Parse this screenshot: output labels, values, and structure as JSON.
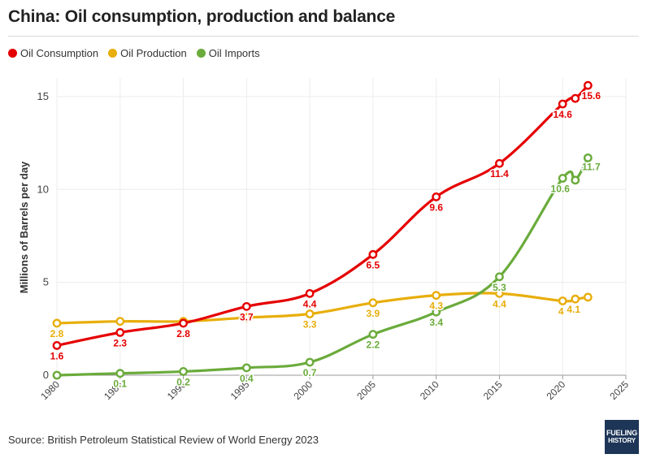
{
  "header": {
    "title": "China: Oil consumption, production and balance"
  },
  "footer": {
    "source": "Source: British Petroleum Statistical Review of World Energy 2023"
  },
  "logo": {
    "line1": "FUELING",
    "line2": "HISTORY"
  },
  "colors": {
    "consumption": "#e50000",
    "production": "#e8ae0c",
    "imports": "#6aab3b",
    "grid": "#ececec",
    "axis": "#999999"
  },
  "chart_data": {
    "type": "line",
    "ylabel": "Millions of Barrels per day",
    "xlabel": "",
    "xlim": [
      1980,
      2025
    ],
    "ylim": [
      0,
      16
    ],
    "x_ticks": [
      1980,
      1985,
      1990,
      1995,
      2000,
      2005,
      2010,
      2015,
      2020,
      2025
    ],
    "y_ticks": [
      0,
      5,
      10,
      15
    ],
    "grid": true,
    "legend": "top-left",
    "series": [
      {
        "name": "Oil Consumption",
        "color": "#e50000",
        "x": [
          1980,
          1985,
          1990,
          1995,
          2000,
          2005,
          2010,
          2015,
          2020,
          2021,
          2022
        ],
        "values": [
          1.6,
          2.3,
          2.8,
          3.7,
          4.4,
          6.5,
          9.6,
          11.4,
          14.6,
          14.9,
          15.6
        ],
        "labels": [
          "1.6",
          "2.3",
          "2.8",
          "3.7",
          "4.4",
          "6.5",
          "9.6",
          "11.4",
          "14.6",
          "",
          "15.6"
        ]
      },
      {
        "name": "Oil Production",
        "color": "#e8ae0c",
        "x": [
          1980,
          1985,
          1990,
          1995,
          2000,
          2005,
          2010,
          2015,
          2020,
          2021,
          2022
        ],
        "values": [
          2.8,
          2.9,
          2.9,
          3.1,
          3.3,
          3.9,
          4.3,
          4.4,
          4.0,
          4.1,
          4.2
        ],
        "labels": [
          "2.8",
          "",
          "",
          "",
          "3.3",
          "3.9",
          "4.3",
          "4.4",
          "4",
          "4.1",
          ""
        ]
      },
      {
        "name": "Oil Imports",
        "color": "#6aab3b",
        "x": [
          1980,
          1985,
          1990,
          1995,
          2000,
          2005,
          2010,
          2015,
          2020,
          2021,
          2022
        ],
        "values": [
          0.0,
          0.1,
          0.2,
          0.4,
          0.7,
          2.2,
          3.4,
          5.3,
          10.6,
          10.5,
          11.7
        ],
        "labels": [
          "",
          "0.1",
          "0.2",
          "0.4",
          "0.7",
          "2.2",
          "3.4",
          "5.3",
          "10.6",
          "",
          "11.7"
        ]
      }
    ]
  }
}
